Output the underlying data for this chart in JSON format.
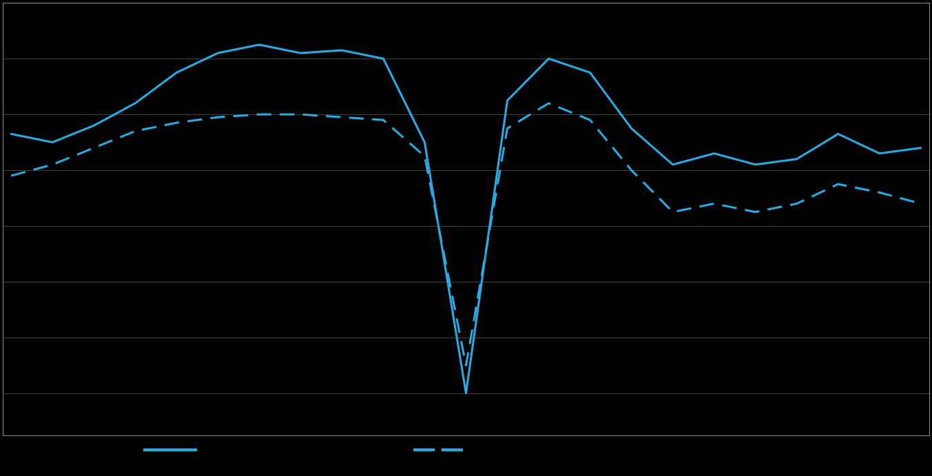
{
  "solid_line": [
    33,
    30,
    36,
    44,
    55,
    62,
    65,
    62,
    63,
    60,
    30,
    -60,
    45,
    60,
    55,
    35,
    22,
    26,
    22,
    24,
    33,
    26,
    28
  ],
  "dashed_line": [
    18,
    22,
    28,
    34,
    37,
    39,
    40,
    40,
    39,
    38,
    25,
    -50,
    35,
    44,
    38,
    20,
    5,
    8,
    5,
    8,
    15,
    12,
    8
  ],
  "line_color": "#29ABE2",
  "background_color": "#000000",
  "plot_bg_color": "#000000",
  "grid_color": "#444444",
  "spine_color": "#888888",
  "ylim": [
    -75,
    80
  ],
  "n_gridlines": 9
}
